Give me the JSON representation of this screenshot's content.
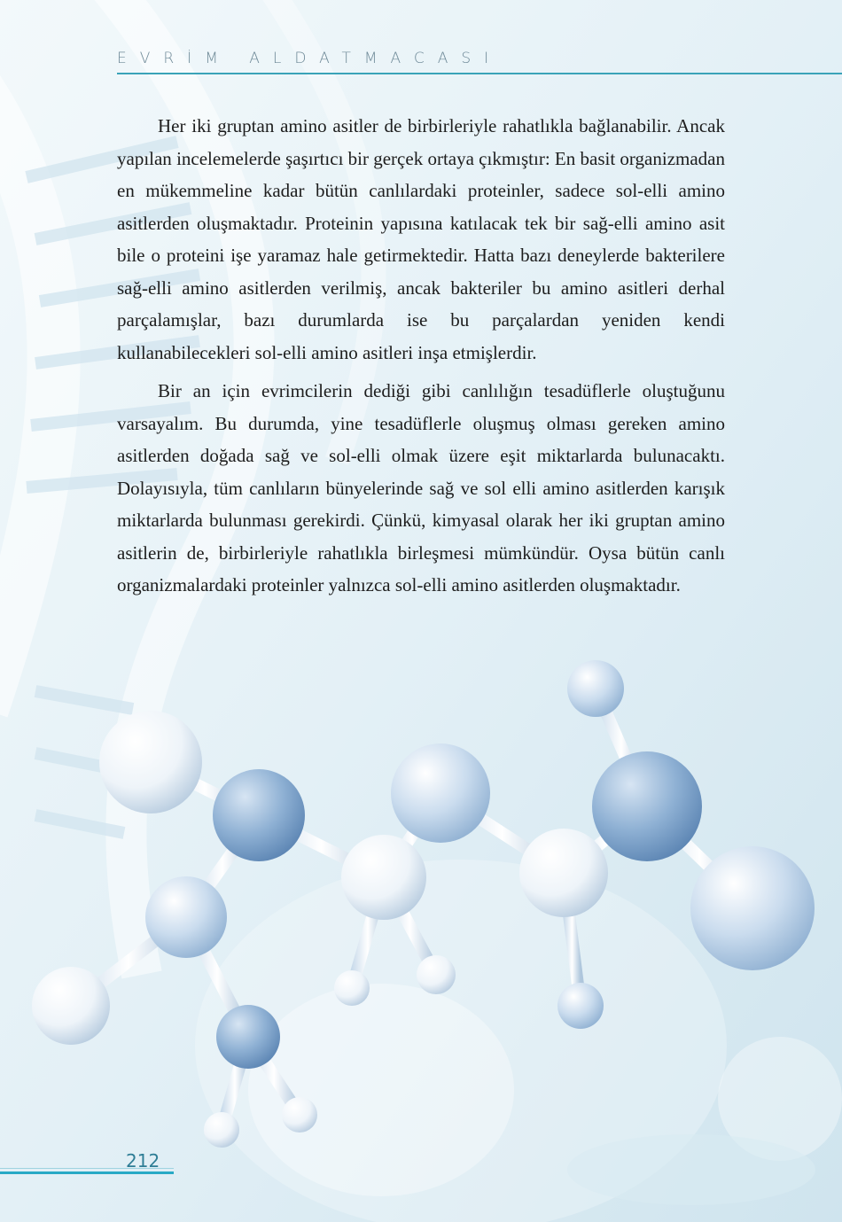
{
  "header": {
    "running_title": "EVRİM ALDATMACASI"
  },
  "paragraphs": [
    "Her iki gruptan amino asitler de birbirleriyle rahatlıkla bağlanabi­lir. Ancak yapılan incelemelerde şaşırtıcı bir gerçek ortaya çıkmıştır: En basit organizmadan en mükemmeline kadar bütün canlılardaki prote­inler, sadece sol-elli amino asitlerden oluşmaktadır. Proteinin yapısına katılacak tek bir sağ-elli amino asit bile o proteini işe yaramaz hale getirmektedir. Hatta bazı deneylerde bakterilere sağ-elli amino asitler­den verilmiş, ancak bakteriler bu amino asitleri derhal parçalamışlar, bazı durumlarda ise bu parçalardan yeniden kendi kullanabilecekleri sol-elli amino asitleri inşa etmişlerdir.",
    "Bir an için evrimcilerin dediği gibi canlılığın tesadüflerle oluştuğu­nu varsayalım. Bu durumda, yine tesadüflerle oluşmuş olması gereken amino asitlerden doğada sağ ve sol-elli olmak üzere eşit miktarlarda bulunacaktı. Dolayısıyla, tüm canlıların bünyelerinde sağ ve sol elli amino asitlerden karışık miktarlarda bulunması gerekirdi. Çünkü, kim­yasal olarak her iki gruptan amino asitlerin de, birbirleriyle rahatlıkla birleşmesi mümkündür. Oysa bütün canlı organizmalardaki proteinler yalnızca sol-elli amino asitlerden oluşmaktadır."
  ],
  "footer": {
    "page_number": "212"
  },
  "colors": {
    "accent": "#28a9c6",
    "text": "#1d1d1d"
  }
}
